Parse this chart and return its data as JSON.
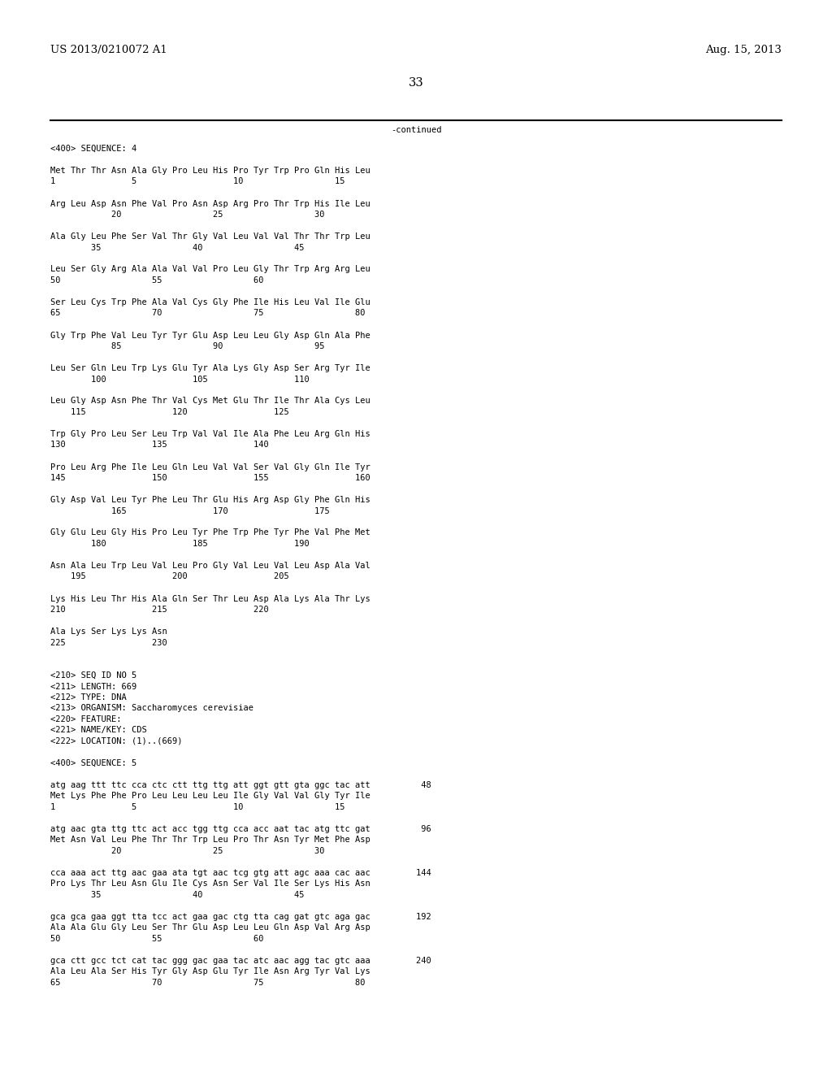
{
  "header_left": "US 2013/0210072 A1",
  "header_right": "Aug. 15, 2013",
  "page_number": "33",
  "continued_label": "-continued",
  "bg_color": "#ffffff",
  "text_color": "#000000",
  "font_size": 7.5,
  "header_font_size": 9.5,
  "lines": [
    "<400> SEQUENCE: 4",
    "",
    "Met Thr Thr Asn Ala Gly Pro Leu His Pro Tyr Trp Pro Gln His Leu",
    "1               5                   10                  15",
    "",
    "Arg Leu Asp Asn Phe Val Pro Asn Asp Arg Pro Thr Trp His Ile Leu",
    "            20                  25                  30",
    "",
    "Ala Gly Leu Phe Ser Val Thr Gly Val Leu Val Val Thr Thr Trp Leu",
    "        35                  40                  45",
    "",
    "Leu Ser Gly Arg Ala Ala Val Val Pro Leu Gly Thr Trp Arg Arg Leu",
    "50                  55                  60",
    "",
    "Ser Leu Cys Trp Phe Ala Val Cys Gly Phe Ile His Leu Val Ile Glu",
    "65                  70                  75                  80",
    "",
    "Gly Trp Phe Val Leu Tyr Tyr Glu Asp Leu Leu Gly Asp Gln Ala Phe",
    "            85                  90                  95",
    "",
    "Leu Ser Gln Leu Trp Lys Glu Tyr Ala Lys Gly Asp Ser Arg Tyr Ile",
    "        100                 105                 110",
    "",
    "Leu Gly Asp Asn Phe Thr Val Cys Met Glu Thr Ile Thr Ala Cys Leu",
    "    115                 120                 125",
    "",
    "Trp Gly Pro Leu Ser Leu Trp Val Val Ile Ala Phe Leu Arg Gln His",
    "130                 135                 140",
    "",
    "Pro Leu Arg Phe Ile Leu Gln Leu Val Val Ser Val Gly Gln Ile Tyr",
    "145                 150                 155                 160",
    "",
    "Gly Asp Val Leu Tyr Phe Leu Thr Glu His Arg Asp Gly Phe Gln His",
    "            165                 170                 175",
    "",
    "Gly Glu Leu Gly His Pro Leu Tyr Phe Trp Phe Tyr Phe Val Phe Met",
    "        180                 185                 190",
    "",
    "Asn Ala Leu Trp Leu Val Leu Pro Gly Val Leu Val Leu Asp Ala Val",
    "    195                 200                 205",
    "",
    "Lys His Leu Thr His Ala Gln Ser Thr Leu Asp Ala Lys Ala Thr Lys",
    "210                 215                 220",
    "",
    "Ala Lys Ser Lys Lys Asn",
    "225                 230",
    "",
    "",
    "<210> SEQ ID NO 5",
    "<211> LENGTH: 669",
    "<212> TYPE: DNA",
    "<213> ORGANISM: Saccharomyces cerevisiae",
    "<220> FEATURE:",
    "<221> NAME/KEY: CDS",
    "<222> LOCATION: (1)..(669)",
    "",
    "<400> SEQUENCE: 5",
    "",
    "atg aag ttt ttc cca ctc ctt ttg ttg att ggt gtt gta ggc tac att          48",
    "Met Lys Phe Phe Pro Leu Leu Leu Leu Ile Gly Val Val Gly Tyr Ile",
    "1               5                   10                  15",
    "",
    "atg aac gta ttg ttc act acc tgg ttg cca acc aat tac atg ttc gat          96",
    "Met Asn Val Leu Phe Thr Thr Trp Leu Pro Thr Asn Tyr Met Phe Asp",
    "            20                  25                  30",
    "",
    "cca aaa act ttg aac gaa ata tgt aac tcg gtg att agc aaa cac aac         144",
    "Pro Lys Thr Leu Asn Glu Ile Cys Asn Ser Val Ile Ser Lys His Asn",
    "        35                  40                  45",
    "",
    "gca gca gaa ggt tta tcc act gaa gac ctg tta cag gat gtc aga gac         192",
    "Ala Ala Glu Gly Leu Ser Thr Glu Asp Leu Leu Gln Asp Val Arg Asp",
    "50                  55                  60",
    "",
    "gca ctt gcc tct cat tac ggg gac gaa tac atc aac agg tac gtc aaa         240",
    "Ala Leu Ala Ser His Tyr Gly Asp Glu Tyr Ile Asn Arg Tyr Val Lys",
    "65                  70                  75                  80"
  ]
}
